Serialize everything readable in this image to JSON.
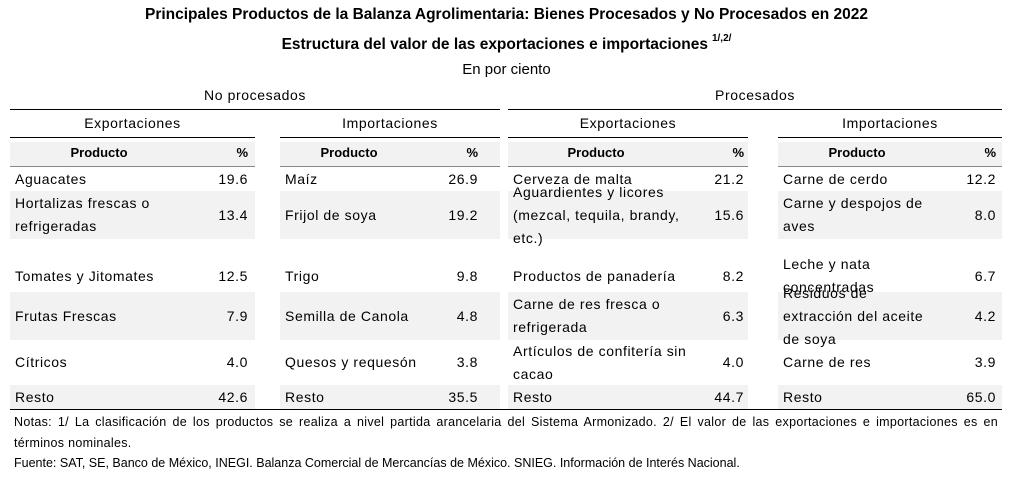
{
  "title": "Principales Productos de la Balanza Agrolimentaria: Bienes Procesados y No Procesados en 2022",
  "subtitle": "Estructura del valor de las exportaciones e importaciones",
  "subtitle_note": "1/,2/",
  "unit": "En por ciento",
  "groups": {
    "no_procesados": "No procesados",
    "procesados": "Procesados"
  },
  "sections": {
    "np_exp": {
      "label": "Exportaciones",
      "col_product": "Producto",
      "col_pct": "%",
      "rows": [
        {
          "product": "Aguacates",
          "pct": "19.6"
        },
        {
          "product": "Hortalizas frescas o refrigeradas",
          "pct": "13.4"
        },
        {
          "product": "Tomates y Jitomates",
          "pct": "12.5"
        },
        {
          "product": "Frutas Frescas",
          "pct": "7.9"
        },
        {
          "product": "Cítricos",
          "pct": "4.0"
        },
        {
          "product": "Resto",
          "pct": "42.6"
        }
      ]
    },
    "np_imp": {
      "label": "Importaciones",
      "col_product": "Producto",
      "col_pct": "%",
      "rows": [
        {
          "product": "Maíz",
          "pct": "26.9"
        },
        {
          "product": "Frijol de soya",
          "pct": "19.2"
        },
        {
          "product": "Trigo",
          "pct": "9.8"
        },
        {
          "product": "Semilla de Canola",
          "pct": "4.8"
        },
        {
          "product": "Quesos y requesón",
          "pct": "3.8"
        },
        {
          "product": "Resto",
          "pct": "35.5"
        }
      ]
    },
    "p_exp": {
      "label": "Exportaciones",
      "col_product": "Producto",
      "col_pct": "%",
      "rows": [
        {
          "product": "Cerveza de malta",
          "pct": "21.2"
        },
        {
          "product": "Aguardientes y licores (mezcal, tequila, brandy, etc.)",
          "pct": "15.6"
        },
        {
          "product": "Productos de panadería",
          "pct": "8.2"
        },
        {
          "product": "Carne de res fresca o refrigerada",
          "pct": "6.3"
        },
        {
          "product": "Artículos de confitería sin cacao",
          "pct": "4.0"
        },
        {
          "product": "Resto",
          "pct": "44.7"
        }
      ]
    },
    "p_imp": {
      "label": "Importaciones",
      "col_product": "Producto",
      "col_pct": "%",
      "rows": [
        {
          "product": "Carne de cerdo",
          "pct": "12.2"
        },
        {
          "product": "Carne y despojos de aves",
          "pct": "8.0"
        },
        {
          "product": "Leche y nata concentradas",
          "pct": "6.7"
        },
        {
          "product": "Residuos de extracción del aceite de soya",
          "pct": "4.2"
        },
        {
          "product": "Carne de res",
          "pct": "3.9"
        },
        {
          "product": "Resto",
          "pct": "65.0"
        }
      ]
    }
  },
  "notes": "Notas: 1/ La clasificación de los productos se realiza a nivel partida arancelaria del Sistema Armonizado. 2/ El valor de las exportaciones e importaciones es en términos nominales.",
  "source": "Fuente: SAT, SE, Banco de México, INEGI. Balanza Comercial de Mercancías de México. SNIEG. Información de Interés Nacional."
}
